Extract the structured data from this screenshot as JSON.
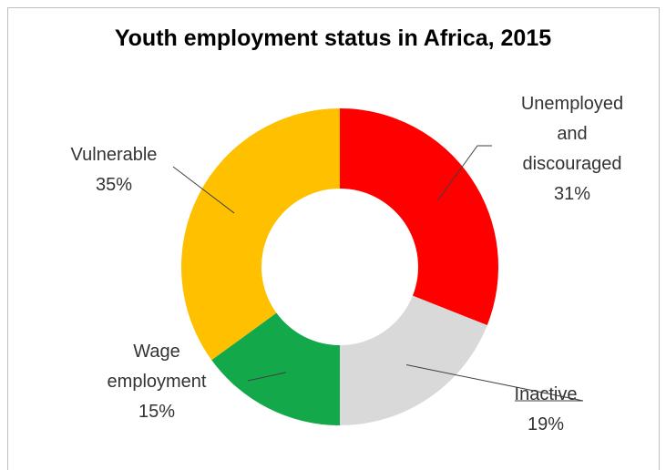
{
  "chart_data": {
    "type": "pie",
    "title": "Youth employment status in Africa, 2015",
    "donut": true,
    "slices": [
      {
        "name": "Unemployed and discouraged",
        "label_lines": [
          "Unemployed",
          "and",
          "discouraged"
        ],
        "value": 31,
        "value_label": "31%",
        "color": "#ff0000"
      },
      {
        "name": "Inactive",
        "label_lines": [
          "Inactive"
        ],
        "value": 19,
        "value_label": "19%",
        "color": "#d9d9d9"
      },
      {
        "name": "Wage employment",
        "label_lines": [
          "Wage",
          "employment"
        ],
        "value": 15,
        "value_label": "15%",
        "color": "#13a84a"
      },
      {
        "name": "Vulnerable",
        "label_lines": [
          "Vulnerable"
        ],
        "value": 35,
        "value_label": "35%",
        "color": "#ffc000"
      }
    ]
  }
}
